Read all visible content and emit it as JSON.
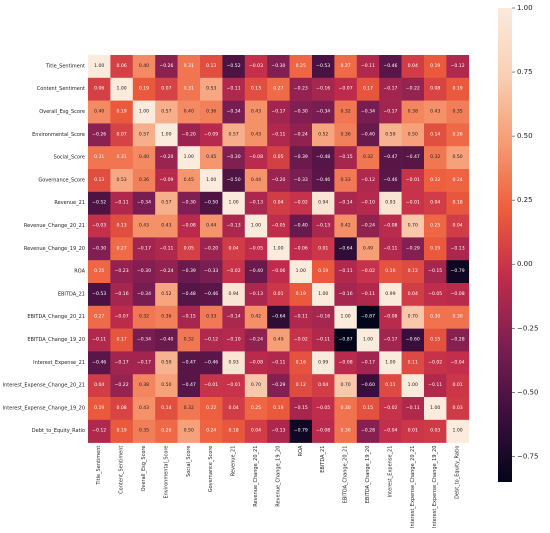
{
  "chart_data": {
    "type": "heatmap",
    "title": "",
    "xlabel": "",
    "ylabel": "",
    "labels": [
      "Title_Sentiment",
      "Content_Sentiment",
      "Overall_Esg_Score",
      "Environmental_Score",
      "Social_Score",
      "Governance_Score",
      "Revenue_21",
      "Revenue_Change_20_21",
      "Revenue_Change_19_20",
      "ROA",
      "EBITDA_21",
      "EBITDA_Change_20_21",
      "EBITDA_Change_19_20",
      "Interest_Expense_21",
      "Interest_Expense_Change_20_21",
      "Interest_Expense_Change_19_20",
      "Debt_to_Equity_Ratio"
    ],
    "matrix": [
      [
        1.0,
        0.06,
        0.4,
        -0.26,
        0.31,
        0.13,
        -0.52,
        -0.03,
        -0.3,
        0.25,
        -0.53,
        0.27,
        -0.11,
        -0.46,
        0.04,
        0.19,
        -0.12
      ],
      [
        0.06,
        1.0,
        0.19,
        0.07,
        0.31,
        0.53,
        -0.11,
        0.13,
        0.27,
        -0.23,
        -0.16,
        -0.07,
        0.17,
        -0.17,
        -0.22,
        0.08,
        0.19
      ],
      [
        0.4,
        0.19,
        1.0,
        0.57,
        0.4,
        0.36,
        -0.34,
        0.43,
        -0.17,
        -0.3,
        -0.34,
        0.32,
        -0.34,
        -0.17,
        0.38,
        0.43,
        0.35
      ],
      [
        -0.26,
        0.07,
        0.57,
        1.0,
        -0.2,
        -0.09,
        0.57,
        0.43,
        -0.11,
        -0.24,
        0.52,
        0.36,
        -0.4,
        0.59,
        0.5,
        0.14,
        0.26
      ],
      [
        0.31,
        0.31,
        0.4,
        -0.2,
        1.0,
        0.45,
        -0.3,
        -0.08,
        0.05,
        -0.39,
        -0.48,
        -0.15,
        0.32,
        -0.47,
        -0.47,
        0.32,
        0.5
      ],
      [
        0.13,
        0.53,
        0.36,
        -0.09,
        0.45,
        1.0,
        -0.5,
        0.44,
        -0.2,
        -0.33,
        -0.46,
        0.33,
        -0.12,
        -0.46,
        -0.01,
        0.22,
        0.24
      ],
      [
        -0.52,
        -0.11,
        -0.34,
        0.57,
        -0.3,
        -0.5,
        1.0,
        -0.13,
        0.04,
        -0.02,
        0.94,
        -0.14,
        -0.1,
        0.93,
        -0.01,
        0.04,
        0.18
      ],
      [
        -0.03,
        0.13,
        0.43,
        0.43,
        -0.08,
        0.44,
        -0.13,
        1.0,
        -0.05,
        -0.4,
        -0.13,
        0.42,
        -0.24,
        -0.08,
        0.7,
        0.25,
        0.04
      ],
      [
        -0.3,
        0.27,
        -0.17,
        -0.11,
        0.05,
        -0.2,
        0.04,
        -0.05,
        1.0,
        -0.06,
        0.01,
        -0.64,
        0.49,
        -0.11,
        -0.29,
        0.19,
        -0.13
      ],
      [
        0.25,
        -0.23,
        -0.3,
        -0.24,
        -0.39,
        -0.33,
        -0.02,
        -0.4,
        -0.06,
        1.0,
        0.19,
        -0.11,
        -0.02,
        0.16,
        0.12,
        -0.15,
        -0.79
      ],
      [
        -0.53,
        -0.16,
        -0.34,
        0.52,
        -0.48,
        -0.46,
        0.94,
        -0.13,
        0.01,
        0.19,
        1.0,
        -0.16,
        -0.11,
        0.99,
        0.04,
        -0.05,
        -0.08
      ],
      [
        0.27,
        -0.07,
        0.32,
        0.36,
        -0.15,
        0.33,
        -0.14,
        0.42,
        -0.64,
        -0.11,
        -0.16,
        1.0,
        -0.87,
        -0.08,
        0.7,
        0.3,
        0.3
      ],
      [
        -0.11,
        0.17,
        -0.34,
        -0.4,
        0.32,
        -0.12,
        -0.1,
        -0.24,
        0.49,
        -0.02,
        -0.11,
        -0.87,
        1.0,
        -0.17,
        -0.6,
        0.15,
        -0.28
      ],
      [
        -0.46,
        -0.17,
        -0.17,
        0.59,
        -0.47,
        -0.46,
        0.93,
        -0.08,
        -0.11,
        0.16,
        0.99,
        -0.08,
        -0.17,
        1.0,
        0.11,
        -0.02,
        -0.04
      ],
      [
        0.04,
        -0.22,
        0.38,
        0.5,
        -0.47,
        -0.01,
        -0.01,
        0.7,
        -0.29,
        0.12,
        0.04,
        0.7,
        -0.6,
        0.11,
        1.0,
        -0.11,
        0.01
      ],
      [
        0.19,
        0.08,
        0.43,
        0.14,
        0.32,
        0.22,
        0.04,
        0.25,
        0.19,
        -0.15,
        -0.05,
        0.3,
        0.15,
        -0.02,
        -0.11,
        1.0,
        0.03
      ],
      [
        -0.12,
        0.19,
        0.35,
        0.26,
        0.5,
        0.24,
        0.18,
        0.04,
        -0.13,
        -0.79,
        -0.08,
        0.3,
        -0.28,
        -0.04,
        0.01,
        0.03,
        1.0
      ]
    ],
    "value_format": "2-decimal",
    "colorbar": {
      "min": -0.85,
      "max": 1.0,
      "ticks": [
        1.0,
        0.75,
        0.5,
        0.25,
        0.0,
        -0.25,
        -0.5,
        -0.75
      ],
      "tick_labels": [
        "1.00",
        "0.75",
        "0.50",
        "0.25",
        "0.00",
        "−0.25",
        "−0.50",
        "−0.75"
      ],
      "colormap": "rocket"
    },
    "colors": [
      "#03051a",
      "#3c0f3e",
      "#7b1e52",
      "#bf2b4c",
      "#ed5c3b",
      "#f69b72",
      "#f9cfb4",
      "#faebdd"
    ]
  }
}
